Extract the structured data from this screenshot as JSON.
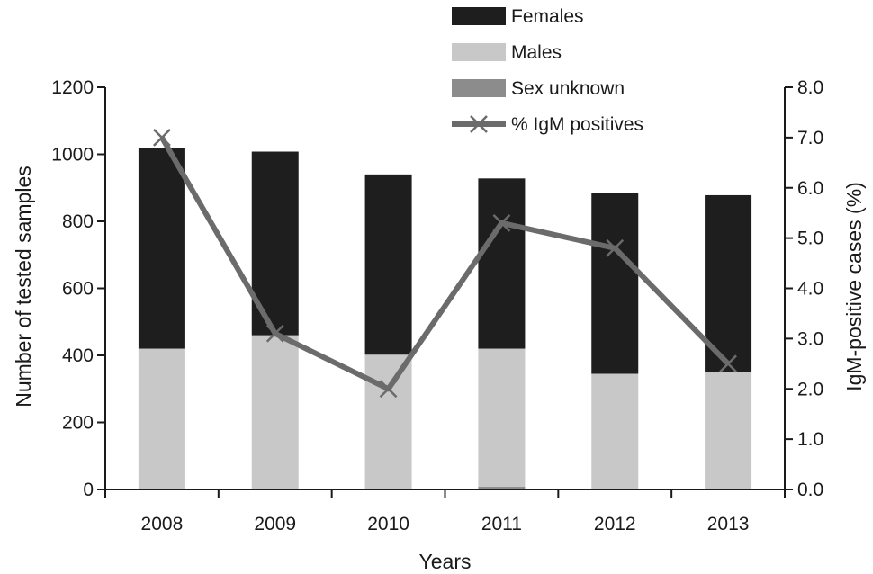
{
  "chart_data": {
    "type": "bar",
    "stacked": true,
    "categories": [
      "2008",
      "2009",
      "2010",
      "2011",
      "2012",
      "2013"
    ],
    "series": [
      {
        "name": "Sex unknown",
        "values": [
          0,
          0,
          0,
          8,
          0,
          0
        ],
        "color": "#8c8c8c"
      },
      {
        "name": "Males",
        "values": [
          420,
          460,
          402,
          412,
          345,
          350
        ],
        "color": "#c8c8c8"
      },
      {
        "name": "Females",
        "values": [
          600,
          548,
          538,
          508,
          540,
          528
        ],
        "color": "#1e1e1e"
      }
    ],
    "line_series": {
      "name": "% IgM positives",
      "values": [
        7.0,
        3.1,
        2.0,
        5.3,
        4.8,
        2.5
      ],
      "color": "#6b6b6b",
      "marker": "x",
      "axis": "right"
    },
    "xlabel": "Years",
    "ylabel": "Number of tested samples",
    "y2label": "IgM-positive cases (%)",
    "ylim": [
      0,
      1200
    ],
    "yticks": [
      0,
      200,
      400,
      600,
      800,
      1000,
      1200
    ],
    "y2lim": [
      0,
      8
    ],
    "y2ticks": [
      "0.0",
      "1.0",
      "2.0",
      "3.0",
      "4.0",
      "5.0",
      "6.0",
      "7.0",
      "8.0"
    ],
    "legend_order": [
      "Females",
      "Males",
      "Sex unknown",
      "% IgM positives"
    ],
    "legend_position": "top-right",
    "grid": false
  }
}
